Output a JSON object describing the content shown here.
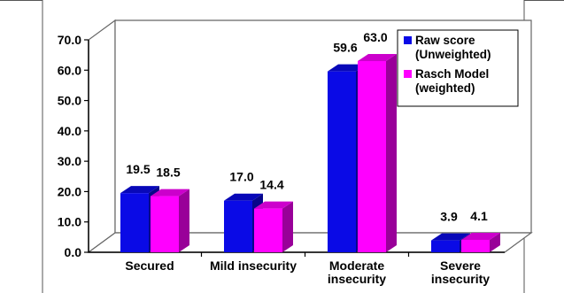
{
  "chart_data": {
    "type": "bar",
    "categories": [
      [
        "Secured"
      ],
      [
        "Mild insecurity"
      ],
      [
        "Moderate",
        "insecurity"
      ],
      [
        "Severe",
        "insecurity"
      ]
    ],
    "series": [
      {
        "name": "Raw score (Unweighted)",
        "legend_lines": [
          "Raw score",
          "(Unweighted)"
        ],
        "color": "#0a0ae6",
        "values": [
          19.5,
          17.0,
          59.6,
          3.9
        ]
      },
      {
        "name": "Rasch Model (weighted)",
        "legend_lines": [
          "Rasch Model",
          "(weighted)"
        ],
        "color": "#ff00ff",
        "values": [
          18.5,
          14.4,
          63.0,
          4.1
        ]
      }
    ],
    "ylim": [
      0,
      70
    ],
    "yticks": [
      "0.0",
      "10.0",
      "20.0",
      "30.0",
      "40.0",
      "50.0",
      "60.0",
      "70.0"
    ],
    "data_labels": [
      [
        "19.5",
        "17.0",
        "59.6",
        "3.9"
      ],
      [
        "18.5",
        "14.4",
        "63.0",
        "4.1"
      ]
    ],
    "legend_position": "top-right",
    "grid": false
  }
}
